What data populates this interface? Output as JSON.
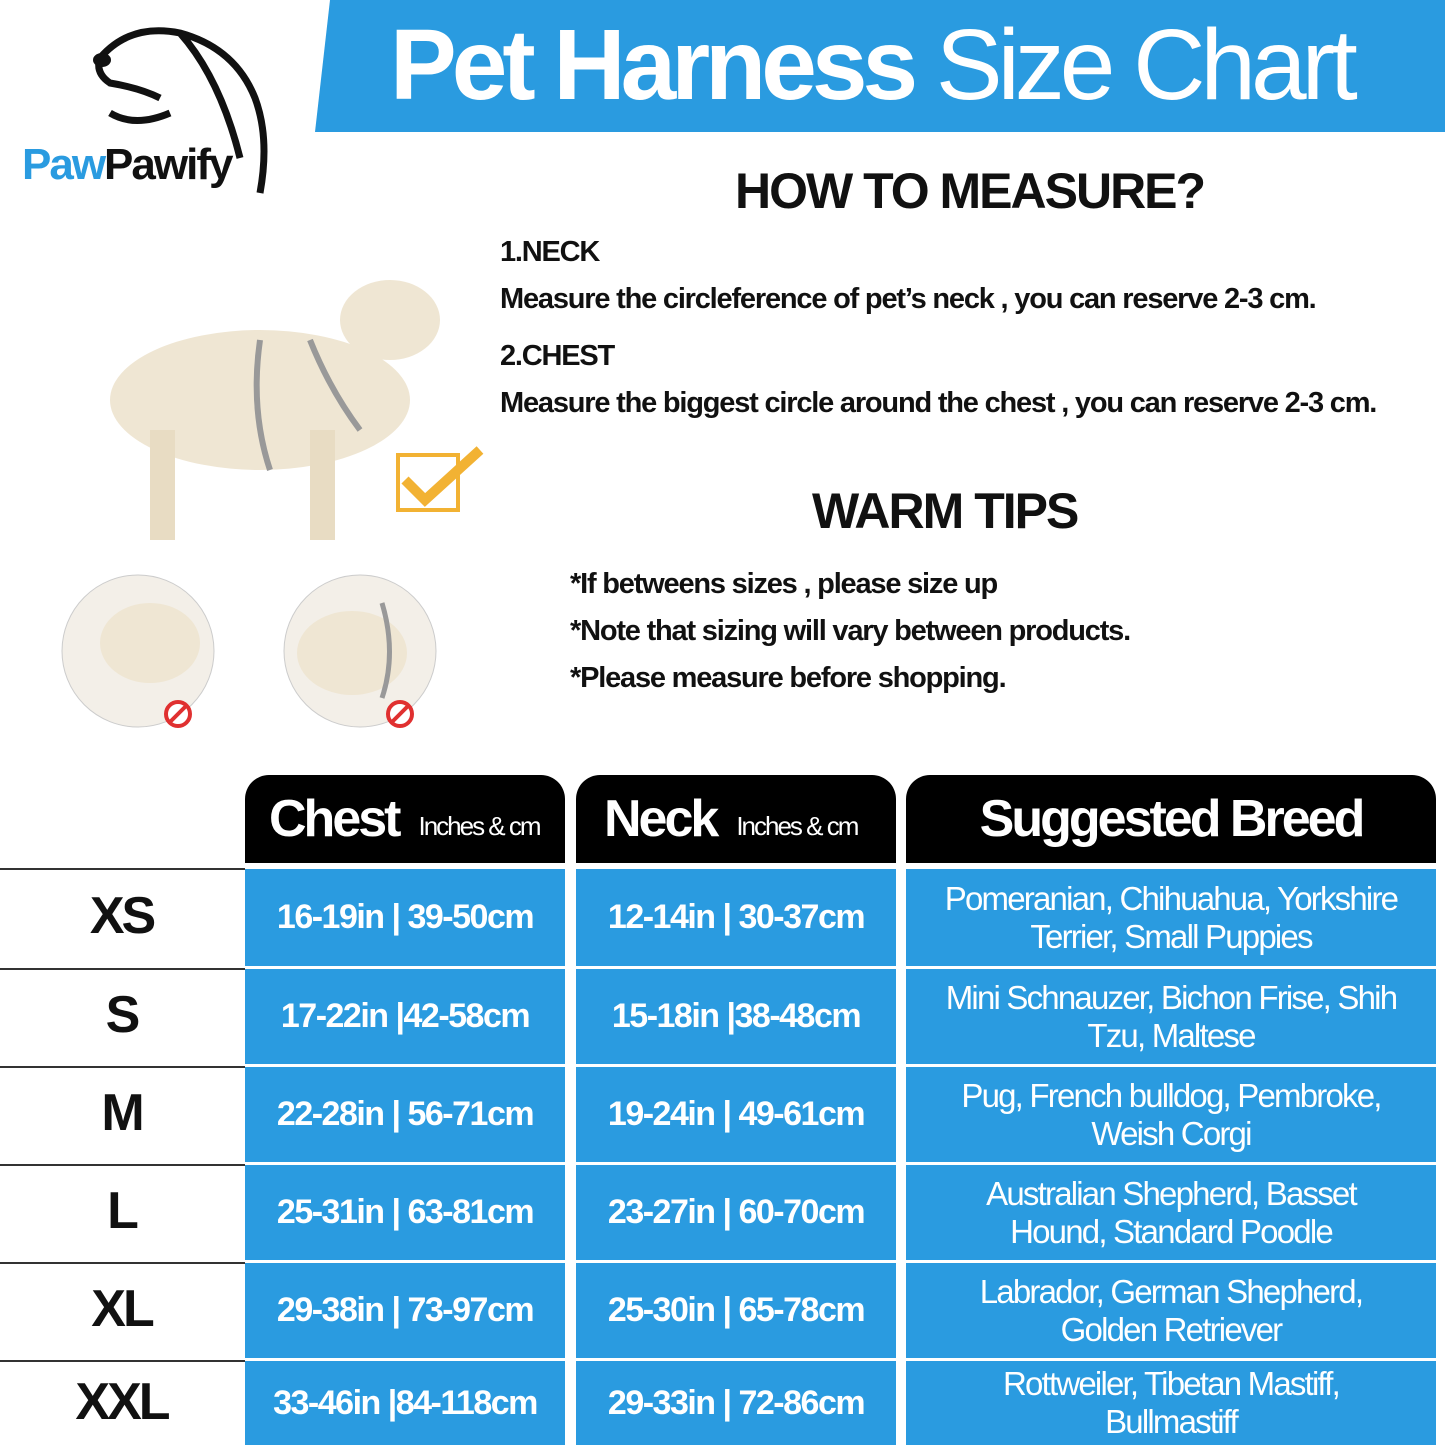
{
  "banner": {
    "title_bold": "Pet Harness",
    "title_light": "Size Chart",
    "color": "#2a9be0"
  },
  "logo": {
    "part1": "Paw",
    "part2": "Pawify"
  },
  "measure": {
    "heading": "HOW TO MEASURE?",
    "neck_label": "1.NECK",
    "neck_text": "Measure the circleference of pet’s neck , you can reserve 2-3 cm.",
    "chest_label": "2.CHEST",
    "chest_text": "Measure the biggest circle around the chest , you can reserve 2-3 cm."
  },
  "tips": {
    "heading": "WARM TIPS",
    "items": [
      "*If betweens sizes , please size up",
      "*Note that sizing will vary between products.",
      "*Please measure before shopping."
    ]
  },
  "icons": [
    "dog-silhouette-icon",
    "checkmark-box-icon",
    "prohibited-icon"
  ],
  "table": {
    "headers": {
      "chest": "Chest",
      "chest_unit": "Inches & cm",
      "neck": "Neck",
      "neck_unit": "Inches & cm",
      "breed": "Suggested Breed"
    },
    "rows": [
      {
        "size": "XS",
        "chest": "16-19in | 39-50cm",
        "neck": "12-14in | 30-37cm",
        "breed": "Pomeranian, Chihuahua, Yorkshire Terrier, Small Puppies"
      },
      {
        "size": "S",
        "chest": "17-22in |42-58cm",
        "neck": "15-18in |38-48cm",
        "breed": "Mini Schnauzer, Bichon Frise, Shih Tzu, Maltese"
      },
      {
        "size": "M",
        "chest": "22-28in | 56-71cm",
        "neck": "19-24in | 49-61cm",
        "breed": "Pug, French bulldog, Pembroke, Weish Corgi"
      },
      {
        "size": "L",
        "chest": "25-31in | 63-81cm",
        "neck": "23-27in | 60-70cm",
        "breed": "Australian Shepherd, Basset Hound, Standard Poodle"
      },
      {
        "size": "XL",
        "chest": "29-38in | 73-97cm",
        "neck": "25-30in | 65-78cm",
        "breed": "Labrador, German Shepherd, Golden Retriever"
      },
      {
        "size": "XXL",
        "chest": "33-46in |84-118cm",
        "neck": "29-33in | 72-86cm",
        "breed": "Rottweiler, Tibetan Mastiff, Bullmastiff"
      }
    ]
  }
}
